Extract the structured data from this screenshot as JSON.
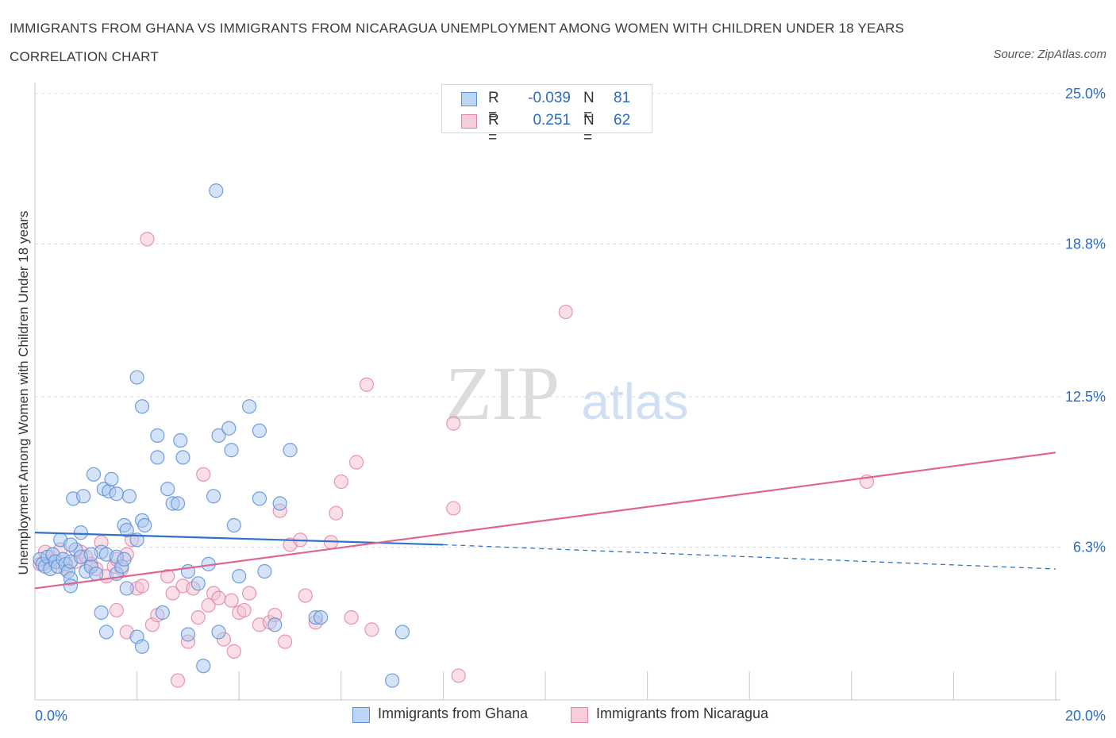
{
  "title": "IMMIGRANTS FROM GHANA VS IMMIGRANTS FROM NICARAGUA UNEMPLOYMENT AMONG WOMEN WITH CHILDREN UNDER 18 YEARS CORRELATION CHART",
  "source": "Source: ZipAtlas.com",
  "watermark": {
    "zip": "ZIP",
    "atlas": "atlas"
  },
  "legend": {
    "ghana": {
      "r_label": "R =",
      "r_value": "-0.039",
      "n_label": "N =",
      "n_value": "81"
    },
    "nicaragua": {
      "r_label": "R =",
      "r_value": "0.251",
      "n_label": "N =",
      "n_value": "62"
    }
  },
  "bottom_legend": {
    "ghana": "Immigrants from Ghana",
    "nicaragua": "Immigrants from Nicaragua"
  },
  "colors": {
    "ghana_fill": "#a9c8ef",
    "ghana_stroke": "#5b8fd6",
    "ghana_line": "#2f72c9",
    "nicaragua_fill": "#f6bfd1",
    "nicaragua_stroke": "#e482a6",
    "nicaragua_line": "#e0648f",
    "tick_label": "#2a6ac0",
    "grid": "#dcdcdc"
  },
  "chart_data": {
    "type": "scatter",
    "title": "IMMIGRANTS FROM GHANA VS IMMIGRANTS FROM NICARAGUA UNEMPLOYMENT AMONG WOMEN WITH CHILDREN UNDER 18 YEARS CORRELATION CHART",
    "xlabel": "",
    "ylabel": "Unemployment Among Women with Children Under 18 years",
    "xlim": [
      0,
      20
    ],
    "ylim": [
      0,
      25
    ],
    "x_ticks": [
      {
        "value": 0,
        "label": "0.0%"
      },
      {
        "value": 20,
        "label": "20.0%"
      }
    ],
    "y_ticks": [
      {
        "value": 6.3,
        "label": "6.3%"
      },
      {
        "value": 12.5,
        "label": "12.5%"
      },
      {
        "value": 18.8,
        "label": "18.8%"
      },
      {
        "value": 25.0,
        "label": "25.0%"
      }
    ],
    "grid": true,
    "legend_position": "top-center",
    "series": [
      {
        "name": "Immigrants from Ghana",
        "trend": {
          "x0": 0,
          "y0": 6.9,
          "x1": 8.0,
          "y1": 6.4,
          "dash_to_x": 20,
          "dash_to_y": 5.4
        },
        "points": [
          [
            0.1,
            5.8
          ],
          [
            0.15,
            5.6
          ],
          [
            0.2,
            5.5
          ],
          [
            0.25,
            5.9
          ],
          [
            0.3,
            5.4
          ],
          [
            0.35,
            6.0
          ],
          [
            0.4,
            5.7
          ],
          [
            0.45,
            5.5
          ],
          [
            0.5,
            6.6
          ],
          [
            0.55,
            5.8
          ],
          [
            0.6,
            5.6
          ],
          [
            0.65,
            5.3
          ],
          [
            0.7,
            5.0
          ],
          [
            0.7,
            5.7
          ],
          [
            0.8,
            6.2
          ],
          [
            0.9,
            5.9
          ],
          [
            0.7,
            6.4
          ],
          [
            0.7,
            4.7
          ],
          [
            1.0,
            5.3
          ],
          [
            1.1,
            5.5
          ],
          [
            1.2,
            5.2
          ],
          [
            1.3,
            6.1
          ],
          [
            1.4,
            6.0
          ],
          [
            1.6,
            5.9
          ],
          [
            1.6,
            5.2
          ],
          [
            1.7,
            5.5
          ],
          [
            1.75,
            5.8
          ],
          [
            1.8,
            4.6
          ],
          [
            0.9,
            6.9
          ],
          [
            1.1,
            6.0
          ],
          [
            1.3,
            3.6
          ],
          [
            1.4,
            2.8
          ],
          [
            0.75,
            8.3
          ],
          [
            0.95,
            8.4
          ],
          [
            1.15,
            9.3
          ],
          [
            1.35,
            8.7
          ],
          [
            1.45,
            8.6
          ],
          [
            1.5,
            9.1
          ],
          [
            1.6,
            8.5
          ],
          [
            1.85,
            8.4
          ],
          [
            1.75,
            7.2
          ],
          [
            1.8,
            7.0
          ],
          [
            2.0,
            6.6
          ],
          [
            2.1,
            7.4
          ],
          [
            2.15,
            7.2
          ],
          [
            2.0,
            13.3
          ],
          [
            2.1,
            12.1
          ],
          [
            2.4,
            10.9
          ],
          [
            2.4,
            10.0
          ],
          [
            2.6,
            8.7
          ],
          [
            2.7,
            8.1
          ],
          [
            2.8,
            8.1
          ],
          [
            2.85,
            10.7
          ],
          [
            2.9,
            10.0
          ],
          [
            3.0,
            5.3
          ],
          [
            3.2,
            4.8
          ],
          [
            3.5,
            8.4
          ],
          [
            3.4,
            5.6
          ],
          [
            3.6,
            10.9
          ],
          [
            3.8,
            11.2
          ],
          [
            3.85,
            10.3
          ],
          [
            3.9,
            7.2
          ],
          [
            4.0,
            5.1
          ],
          [
            4.2,
            12.1
          ],
          [
            4.4,
            11.1
          ],
          [
            4.4,
            8.3
          ],
          [
            4.5,
            5.3
          ],
          [
            4.8,
            8.1
          ],
          [
            5.0,
            10.3
          ],
          [
            5.5,
            3.4
          ],
          [
            3.6,
            2.8
          ],
          [
            4.7,
            3.1
          ],
          [
            2.0,
            2.6
          ],
          [
            2.1,
            2.2
          ],
          [
            2.5,
            3.6
          ],
          [
            3.0,
            2.7
          ],
          [
            3.3,
            1.4
          ],
          [
            3.55,
            21.0
          ],
          [
            5.6,
            3.4
          ],
          [
            7.2,
            2.8
          ],
          [
            7.0,
            0.8
          ]
        ]
      },
      {
        "name": "Immigrants from Nicaragua",
        "trend": {
          "x0": 0,
          "y0": 4.6,
          "x1": 20,
          "y1": 10.2
        },
        "points": [
          [
            0.1,
            5.6
          ],
          [
            0.2,
            6.1
          ],
          [
            0.3,
            5.7
          ],
          [
            0.5,
            6.2
          ],
          [
            0.6,
            5.4
          ],
          [
            0.8,
            5.7
          ],
          [
            0.9,
            6.1
          ],
          [
            1.0,
            5.9
          ],
          [
            1.1,
            5.6
          ],
          [
            1.2,
            5.4
          ],
          [
            1.3,
            6.5
          ],
          [
            1.4,
            5.1
          ],
          [
            1.55,
            5.5
          ],
          [
            1.6,
            5.8
          ],
          [
            1.7,
            5.4
          ],
          [
            1.8,
            6.0
          ],
          [
            1.9,
            6.6
          ],
          [
            2.0,
            4.6
          ],
          [
            2.1,
            4.7
          ],
          [
            2.3,
            3.1
          ],
          [
            2.4,
            3.5
          ],
          [
            2.6,
            5.1
          ],
          [
            2.7,
            4.4
          ],
          [
            2.9,
            4.7
          ],
          [
            3.0,
            2.4
          ],
          [
            3.1,
            4.6
          ],
          [
            3.2,
            3.4
          ],
          [
            3.4,
            3.9
          ],
          [
            3.5,
            4.4
          ],
          [
            3.6,
            4.2
          ],
          [
            3.7,
            2.5
          ],
          [
            3.85,
            4.1
          ],
          [
            3.9,
            2.0
          ],
          [
            4.0,
            3.6
          ],
          [
            4.1,
            3.7
          ],
          [
            4.2,
            4.4
          ],
          [
            4.4,
            3.1
          ],
          [
            4.6,
            3.2
          ],
          [
            4.7,
            3.5
          ],
          [
            4.8,
            7.8
          ],
          [
            4.9,
            2.4
          ],
          [
            5.0,
            6.4
          ],
          [
            5.2,
            6.6
          ],
          [
            5.3,
            4.3
          ],
          [
            5.5,
            3.2
          ],
          [
            5.8,
            6.5
          ],
          [
            5.9,
            7.7
          ],
          [
            6.0,
            9.0
          ],
          [
            6.3,
            9.8
          ],
          [
            6.2,
            3.4
          ],
          [
            6.6,
            2.9
          ],
          [
            6.5,
            13.0
          ],
          [
            8.2,
            11.4
          ],
          [
            8.2,
            7.9
          ],
          [
            8.3,
            1.0
          ],
          [
            10.4,
            16.0
          ],
          [
            16.3,
            9.0
          ],
          [
            2.2,
            19.0
          ],
          [
            1.6,
            3.7
          ],
          [
            1.8,
            2.8
          ],
          [
            2.8,
            0.8
          ],
          [
            3.3,
            9.3
          ]
        ]
      }
    ]
  }
}
